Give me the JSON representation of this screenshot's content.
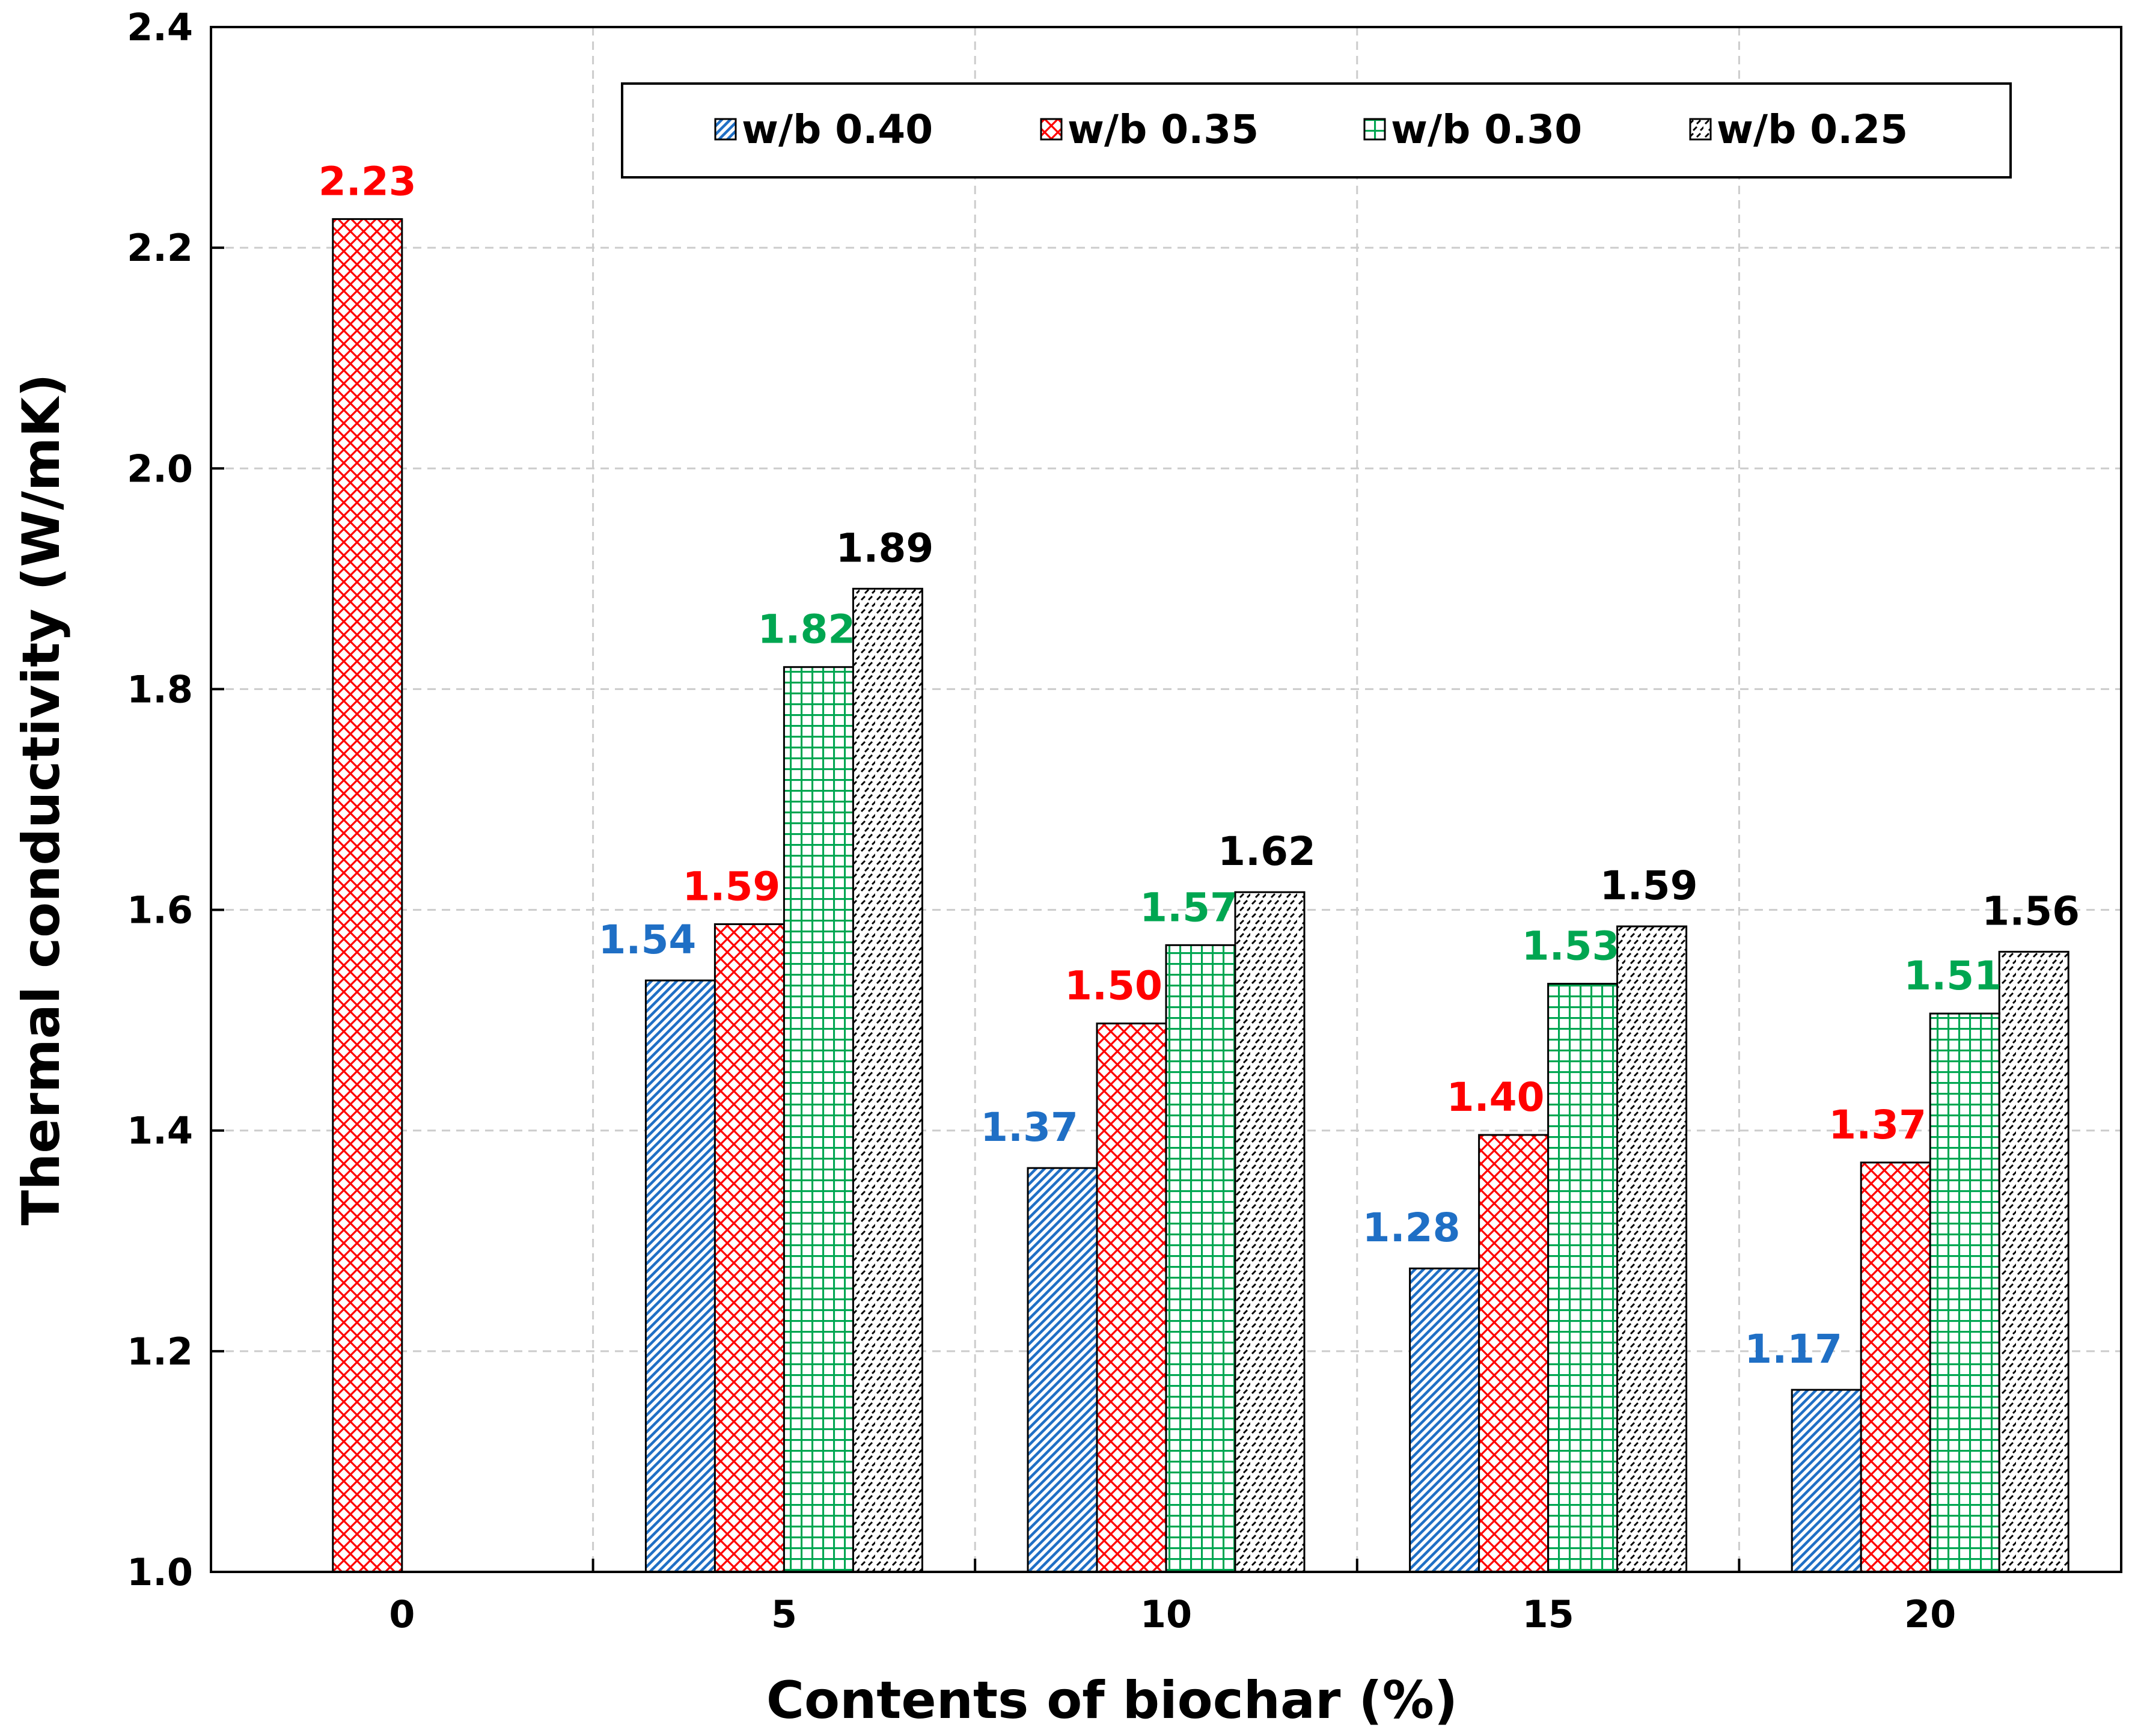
{
  "chart_data": {
    "type": "bar",
    "xlabel": "Contents of biochar (%)",
    "ylabel": "Thermal conductivity (W/mK)",
    "categories": [
      "0",
      "5",
      "10",
      "15",
      "20"
    ],
    "ylim": [
      1.0,
      2.4
    ],
    "yticks": [
      "1.0",
      "1.2",
      "1.4",
      "1.6",
      "1.8",
      "2.0",
      "2.2",
      "2.4"
    ],
    "ytick_values": [
      1.0,
      1.2,
      1.4,
      1.6,
      1.8,
      2.0,
      2.2,
      2.4
    ],
    "grid": true,
    "legend_position": "top-right",
    "series": [
      {
        "name": "w/b 0.40",
        "color": "#1f6fc5",
        "label_color": "#1f6fc5",
        "pattern": "diagonal",
        "values": [
          1.0,
          1.536,
          1.366,
          1.275,
          1.165
        ],
        "labels": [
          "",
          "1.54",
          "1.37",
          "1.28",
          "1.17"
        ]
      },
      {
        "name": "w/b 0.35",
        "color": "#ff0000",
        "label_color": "#ff0000",
        "pattern": "crosshatch",
        "values": [
          2.226,
          1.587,
          1.497,
          1.396,
          1.371
        ],
        "labels": [
          "2.23",
          "1.59",
          "1.50",
          "1.40",
          "1.37"
        ]
      },
      {
        "name": "w/b 0.30",
        "color": "#00a651",
        "label_color": "#00a651",
        "pattern": "grid",
        "values": [
          1.0,
          1.82,
          1.568,
          1.533,
          1.506
        ],
        "labels": [
          "",
          "1.82",
          "1.57",
          "1.53",
          "1.51"
        ]
      },
      {
        "name": "w/b 0.25",
        "color": "#000000",
        "label_color": "#000000",
        "pattern": "dashes",
        "values": [
          1.0,
          1.891,
          1.616,
          1.585,
          1.562
        ],
        "labels": [
          "",
          "1.89",
          "1.62",
          "1.59",
          "1.56"
        ]
      }
    ]
  }
}
